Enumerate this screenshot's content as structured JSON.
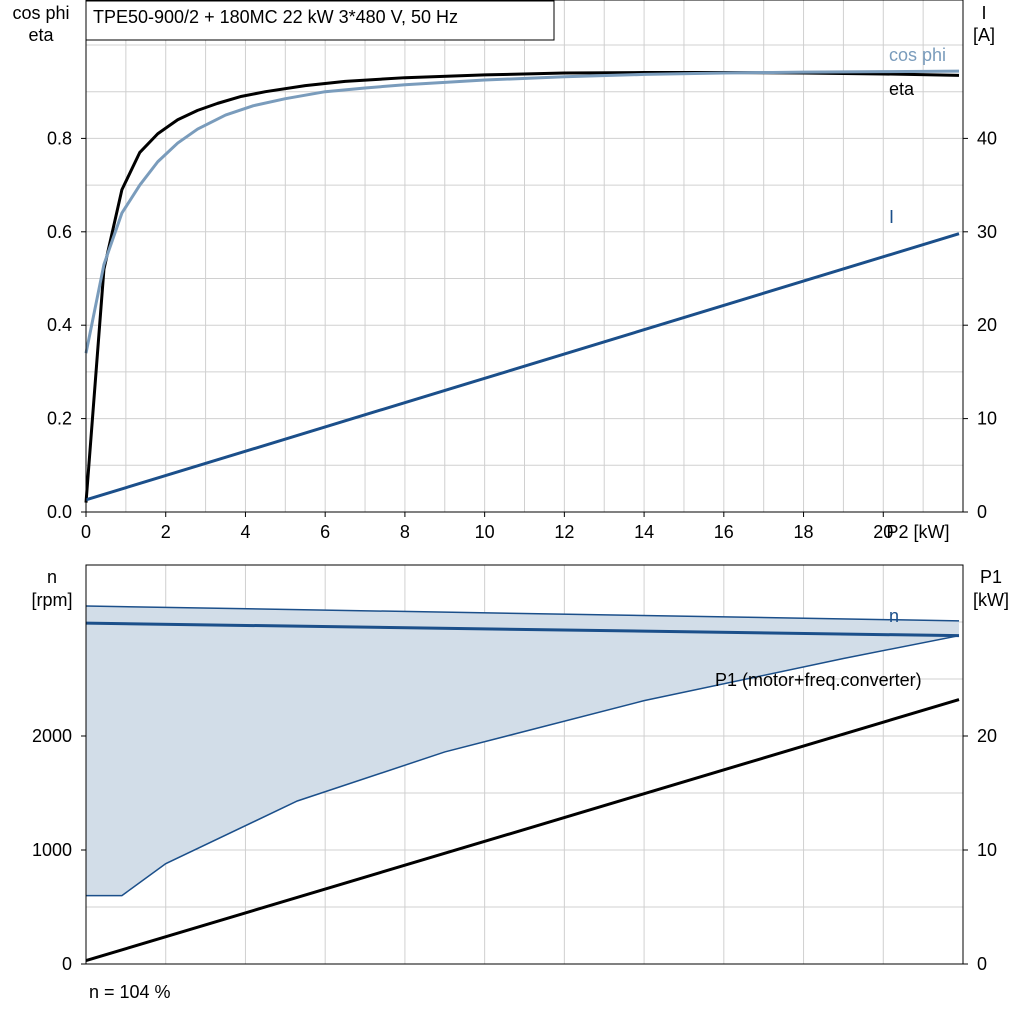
{
  "colors": {
    "eta": "#000000",
    "cos_phi": "#7a9cbc",
    "current": "#1b4f8a",
    "speed": "#1b4f8a",
    "speed_band_fill": "#d2dde8",
    "p1": "#000000",
    "grid": "#d0d0d0",
    "axis": "#000000"
  },
  "footer_text": "n = 104 %",
  "chart_data": [
    {
      "type": "line",
      "title": "TPE50-900/2 + 180MC   22 kW   3*480 V, 50 Hz",
      "xlabel": "P2 [kW]",
      "ylabel_left": [
        "cos phi",
        "eta"
      ],
      "ylabel_right": [
        "I",
        "[A]"
      ],
      "xlim": [
        0,
        22
      ],
      "ylim_left": [
        0,
        1.0
      ],
      "ylim_right": [
        0,
        50
      ],
      "x_ticks": [
        "0",
        "2",
        "4",
        "6",
        "8",
        "10",
        "12",
        "14",
        "16",
        "18",
        "20"
      ],
      "y_left_ticks": [
        "0.0",
        "0.2",
        "0.4",
        "0.6",
        "0.8"
      ],
      "y_right_ticks": [
        "0",
        "10",
        "20",
        "30",
        "40"
      ],
      "grid": true,
      "series": [
        {
          "name": "eta",
          "axis": "left",
          "x": [
            0,
            0.45,
            0.9,
            1.35,
            1.8,
            2.3,
            2.8,
            3.3,
            3.9,
            4.5,
            5.5,
            6.5,
            8,
            10,
            12,
            14,
            16,
            18,
            20,
            21.9
          ],
          "y": [
            0.02,
            0.52,
            0.69,
            0.77,
            0.81,
            0.84,
            0.86,
            0.875,
            0.89,
            0.9,
            0.913,
            0.922,
            0.93,
            0.936,
            0.94,
            0.941,
            0.941,
            0.94,
            0.938,
            0.935
          ]
        },
        {
          "name": "cos phi",
          "axis": "left",
          "x": [
            0,
            0.45,
            0.9,
            1.35,
            1.8,
            2.3,
            2.8,
            3.5,
            4.2,
            5,
            6,
            7,
            8,
            10,
            12,
            14,
            16,
            18,
            20,
            21.9
          ],
          "y": [
            0.34,
            0.53,
            0.64,
            0.7,
            0.75,
            0.79,
            0.82,
            0.85,
            0.87,
            0.885,
            0.9,
            0.908,
            0.915,
            0.925,
            0.932,
            0.937,
            0.94,
            0.942,
            0.943,
            0.944
          ]
        },
        {
          "name": "I",
          "axis": "right",
          "x": [
            0,
            21.9
          ],
          "y": [
            1.3,
            29.8
          ]
        }
      ]
    },
    {
      "type": "area",
      "xlim": [
        0,
        22
      ],
      "ylabel_left": [
        "n",
        "[rpm]"
      ],
      "ylabel_right": [
        "P1",
        "[kW]"
      ],
      "ylim_left": [
        0,
        3000
      ],
      "ylim_right": [
        0,
        30
      ],
      "y_left_ticks": [
        "0",
        "1000",
        "2000"
      ],
      "y_right_ticks": [
        "0",
        "10",
        "20"
      ],
      "grid": true,
      "series": [
        {
          "name": "n",
          "axis": "left",
          "x": [
            0,
            21.9
          ],
          "y": [
            2990,
            2880
          ]
        },
        {
          "name": "P1 (motor+freq.converter)",
          "axis": "right",
          "x": [
            0,
            21.9
          ],
          "y": [
            0.3,
            23.2
          ]
        },
        {
          "name": "n_band_upper",
          "axis": "left",
          "x": [
            0,
            21.9
          ],
          "y": [
            3140,
            3010
          ]
        },
        {
          "name": "n_band_lower",
          "axis": "left",
          "x": [
            0,
            0.9,
            2,
            5.3,
            9,
            14,
            19,
            21.9
          ],
          "y": [
            600,
            600,
            880,
            1430,
            1860,
            2310,
            2680,
            2880
          ]
        }
      ]
    }
  ]
}
